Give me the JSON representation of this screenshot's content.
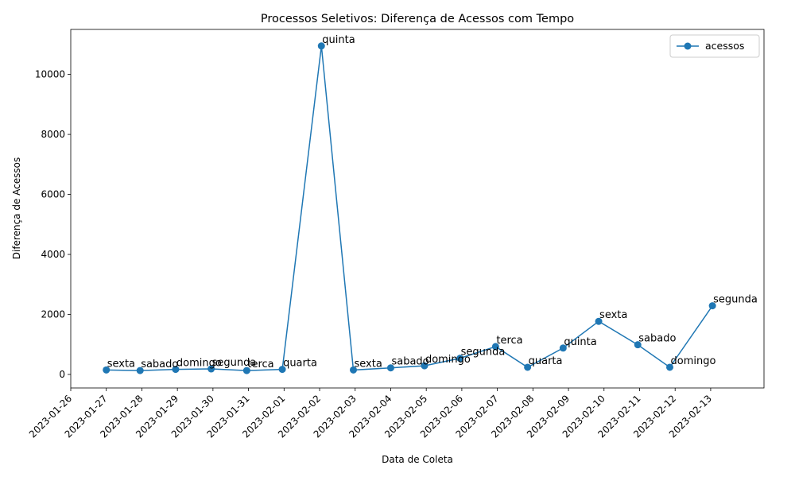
{
  "chart_data": {
    "type": "line",
    "title": "Processos Seletivos: Diferença de Acessos com Tempo",
    "xlabel": "Data de Coleta",
    "ylabel": "Diferença de Acessos",
    "x_ticks": [
      "2023-01-26",
      "2023-01-27",
      "2023-01-28",
      "2023-01-29",
      "2023-01-30",
      "2023-01-31",
      "2023-02-01",
      "2023-02-02",
      "2023-02-03",
      "2023-02-04",
      "2023-02-05",
      "2023-02-06",
      "2023-02-07",
      "2023-02-08",
      "2023-02-09",
      "2023-02-10",
      "2023-02-11",
      "2023-02-12",
      "2023-02-13"
    ],
    "y_ticks": [
      0,
      2000,
      4000,
      6000,
      8000,
      10000
    ],
    "ylim": [
      -450,
      11500
    ],
    "xlim": [
      0,
      19.5
    ],
    "grid": false,
    "legend_position": "top-right",
    "color": "#1f77b4",
    "series": [
      {
        "name": "acessos",
        "points": [
          {
            "x": 1.0,
            "y": 150,
            "label": "sexta"
          },
          {
            "x": 1.95,
            "y": 130,
            "label": "sabado"
          },
          {
            "x": 2.95,
            "y": 170,
            "label": "domingo"
          },
          {
            "x": 3.95,
            "y": 185,
            "label": "segunda"
          },
          {
            "x": 4.95,
            "y": 130,
            "label": "terca"
          },
          {
            "x": 5.95,
            "y": 170,
            "label": "quarta"
          },
          {
            "x": 7.05,
            "y": 10950,
            "label": "quinta"
          },
          {
            "x": 7.95,
            "y": 150,
            "label": "sexta"
          },
          {
            "x": 9.0,
            "y": 220,
            "label": "sabado"
          },
          {
            "x": 9.95,
            "y": 290,
            "label": "domingo"
          },
          {
            "x": 10.95,
            "y": 540,
            "label": "segunda"
          },
          {
            "x": 11.95,
            "y": 930,
            "label": "terca"
          },
          {
            "x": 12.85,
            "y": 240,
            "label": "quarta"
          },
          {
            "x": 13.85,
            "y": 880,
            "label": "quinta"
          },
          {
            "x": 14.85,
            "y": 1770,
            "label": "sexta"
          },
          {
            "x": 15.95,
            "y": 990,
            "label": "sabado"
          },
          {
            "x": 16.85,
            "y": 240,
            "label": "domingo"
          },
          {
            "x": 18.05,
            "y": 2290,
            "label": "segunda"
          }
        ]
      }
    ]
  }
}
